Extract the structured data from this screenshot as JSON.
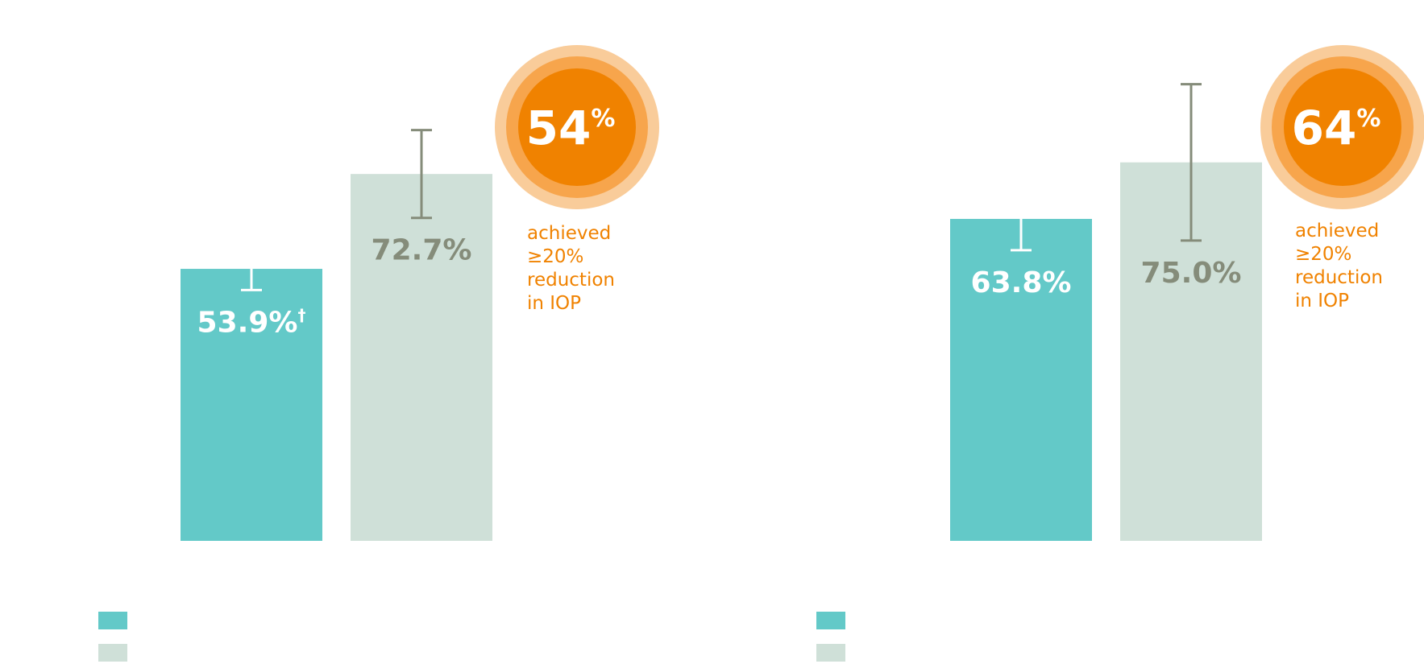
{
  "colors": {
    "series_a": "#63c9c8",
    "series_b": "#cfe0d8",
    "label_a": "#ffffff",
    "label_b": "#858c7a",
    "error_a": "#ffffff",
    "error_b": "#858c7a",
    "badge_outer": "#f9cc9a",
    "badge_mid": "#f7a54c",
    "badge_inner": "#f08200",
    "callout": "#f08200"
  },
  "chart_data": [
    {
      "type": "bar",
      "categories": [
        ""
      ],
      "ylim": [
        0,
        100
      ],
      "grid": false,
      "series": [
        {
          "values": [
            53.9
          ],
          "error": [
            4.2
          ],
          "labels": [
            "53.9%"
          ],
          "label_sup": [
            "†"
          ]
        },
        {
          "values": [
            72.7
          ],
          "error": [
            8.7
          ],
          "labels": [
            "72.7%"
          ],
          "label_sup": [
            ""
          ]
        }
      ],
      "callout": {
        "number": "54",
        "unit": "%",
        "text": [
          "achieved",
          "≥20%",
          "reduction",
          "in IOP"
        ]
      },
      "legend": {
        "placement": "bottom-left",
        "entries": [
          "",
          ""
        ]
      }
    },
    {
      "type": "bar",
      "categories": [
        ""
      ],
      "ylim": [
        0,
        100
      ],
      "grid": false,
      "series": [
        {
          "values": [
            63.8
          ],
          "error": [
            6.2
          ],
          "labels": [
            "63.8%"
          ],
          "label_sup": [
            ""
          ]
        },
        {
          "values": [
            75.0
          ],
          "error": [
            15.5
          ],
          "labels": [
            "75.0%"
          ],
          "label_sup": [
            ""
          ]
        }
      ],
      "callout": {
        "number": "64",
        "unit": "%",
        "text": [
          "achieved",
          "≥20%",
          "reduction",
          "in IOP"
        ]
      },
      "legend": {
        "placement": "bottom-left",
        "entries": [
          "",
          ""
        ]
      }
    }
  ]
}
